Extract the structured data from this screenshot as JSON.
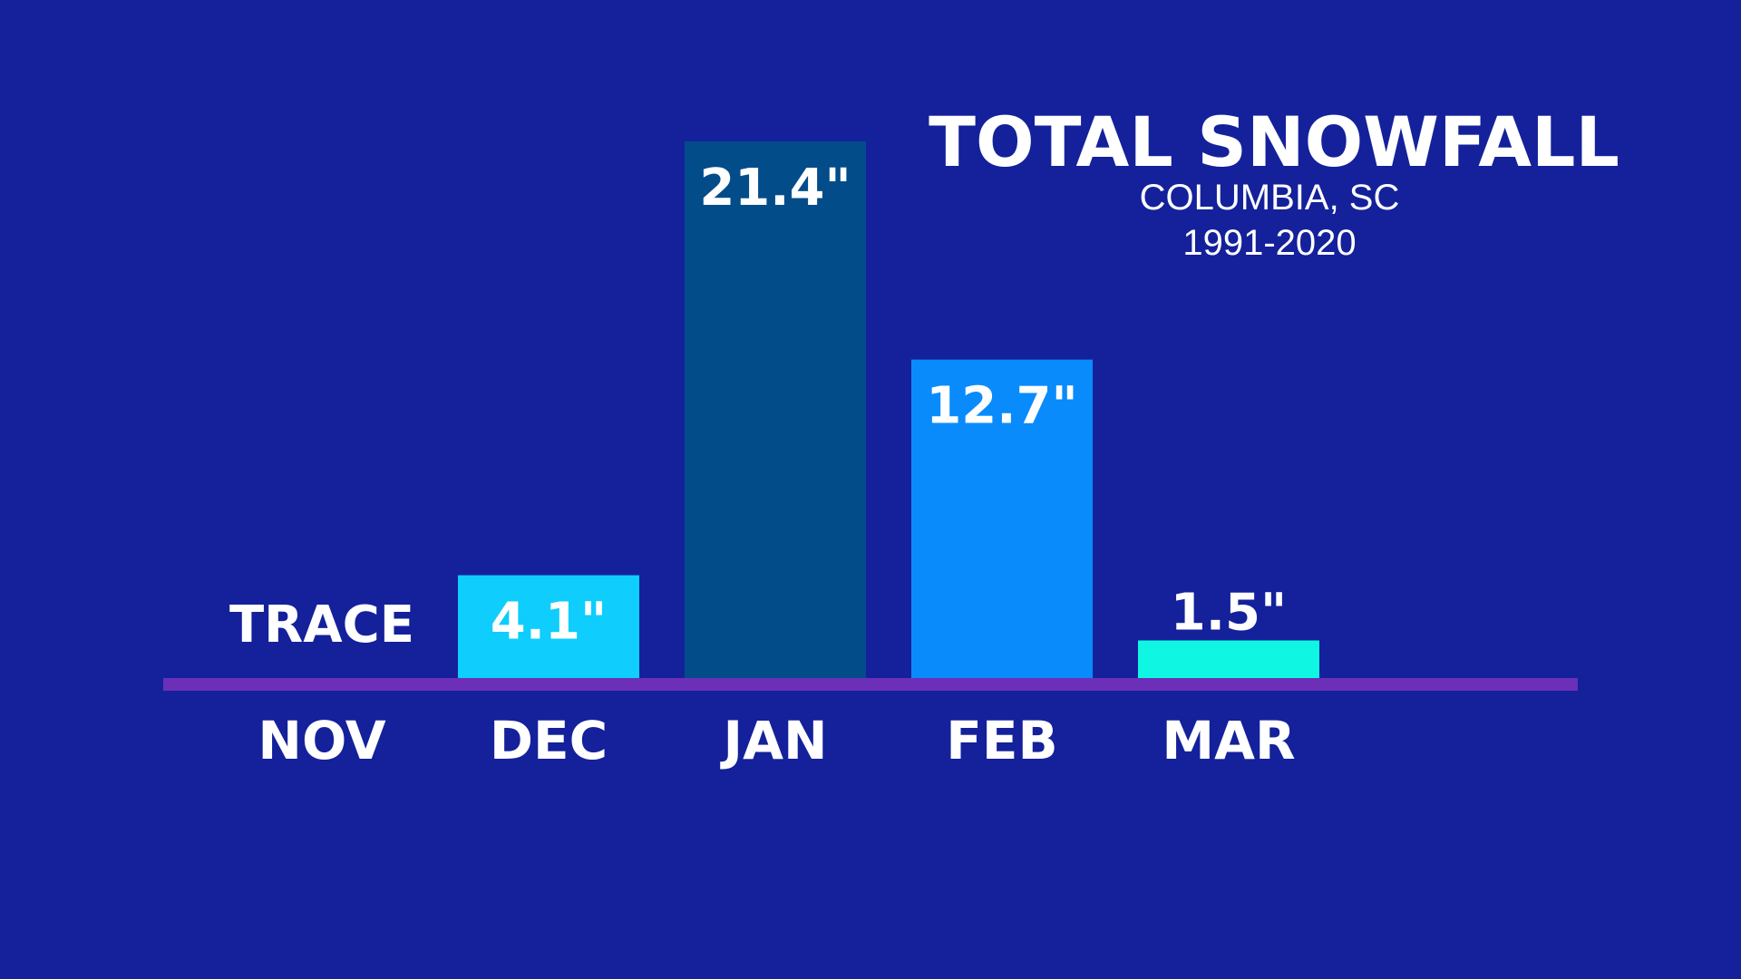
{
  "chart_data": {
    "type": "bar",
    "title": "TOTAL SNOWFALL",
    "subtitle_lines": [
      "COLUMBIA, SC",
      "1991-2020"
    ],
    "categories": [
      "NOV",
      "DEC",
      "JAN",
      "FEB",
      "MAR"
    ],
    "values": [
      0,
      4.1,
      21.4,
      12.7,
      1.5
    ],
    "value_labels": [
      "TRACE",
      "4.1\"",
      "21.4\"",
      "12.7\"",
      "1.5\""
    ],
    "bar_colors": [
      "#14219b",
      "#0fcdfc",
      "#034c8a",
      "#0a8bfc",
      "#0ff7e2"
    ],
    "unit": "inches",
    "ylim": [
      0,
      21.4
    ],
    "grid": false,
    "legend": "none"
  },
  "colors": {
    "background": "#14219b",
    "baseline": "#6b2fb8",
    "text": "#ffffff"
  }
}
